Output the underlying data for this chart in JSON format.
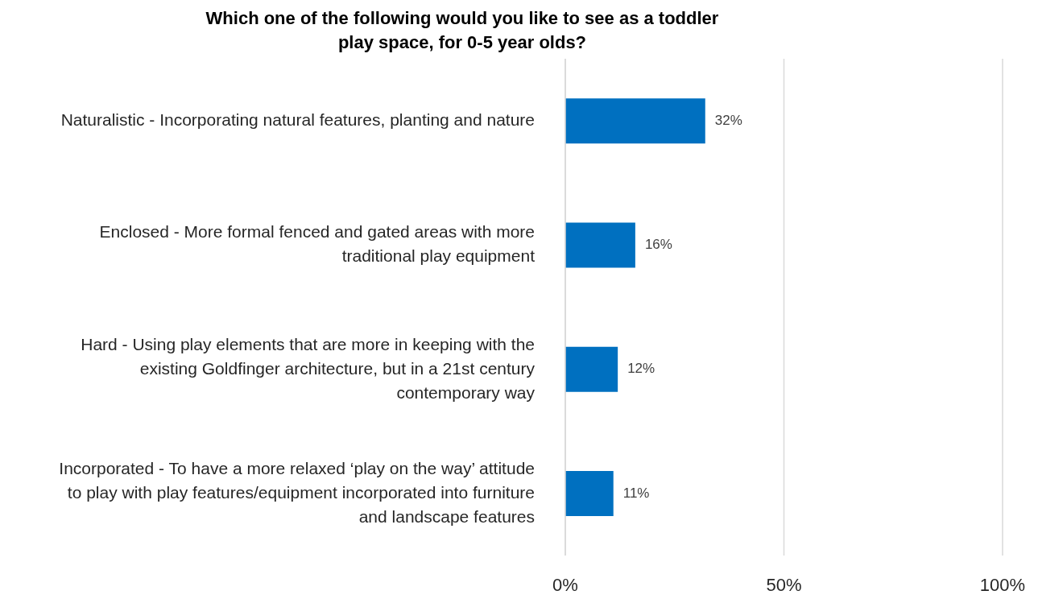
{
  "chart_data": {
    "type": "bar",
    "orientation": "horizontal",
    "title": "Which one of the following would you like to see as a toddler play space, for 0-5 year olds?",
    "categories": [
      "Naturalistic - Incorporating natural features, planting and nature",
      "Enclosed - More formal fenced and gated areas with more traditional play equipment",
      "Hard - Using play elements that are more in keeping with the existing Goldfinger architecture, but in a 21st century contemporary way",
      "Incorporated - To have a more relaxed ‘play on the way’ attitude to play with play features/equipment incorporated into furniture and landscape features"
    ],
    "values": [
      32,
      16,
      12,
      11
    ],
    "value_labels": [
      "32%",
      "16%",
      "12%",
      "11%"
    ],
    "color": "#0070c0",
    "xlim": [
      0,
      100
    ],
    "xticks": [
      {
        "value": 0,
        "label": "0%"
      },
      {
        "value": 50,
        "label": "50%"
      },
      {
        "value": 100,
        "label": "100%"
      }
    ],
    "grid": "x"
  }
}
